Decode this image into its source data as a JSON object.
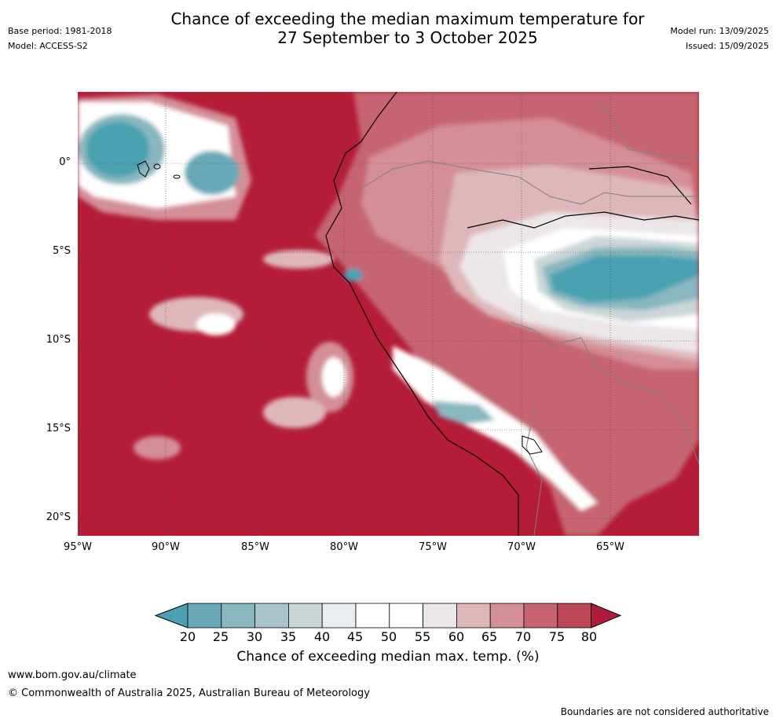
{
  "header": {
    "title_line1": "Chance of exceeding the median maximum temperature for",
    "title_line2": "27 September to 3 October 2025",
    "base_period": "Base period: 1981-2018",
    "model": "Model: ACCESS-S2",
    "model_run": "Model run: 13/09/2025",
    "issued": "Issued: 15/09/2025"
  },
  "map": {
    "lat_labels": [
      "0°",
      "5°S",
      "10°S",
      "15°S",
      "20°S"
    ],
    "lon_labels": [
      "95°W",
      "90°W",
      "85°W",
      "80°W",
      "75°W",
      "70°W",
      "65°W"
    ],
    "base_color": "#b41c38"
  },
  "colorbar": {
    "ticks": [
      "20",
      "25",
      "30",
      "35",
      "40",
      "45",
      "50",
      "55",
      "60",
      "65",
      "70",
      "75",
      "80"
    ],
    "colors": [
      "#4aa1b1",
      "#69a9b7",
      "#88b7c0",
      "#a8c6ca",
      "#cad6d8",
      "#e9eef0",
      "#ffffff",
      "#ffffff",
      "#ebe6e7",
      "#deb7bc",
      "#d48e97",
      "#c66571",
      "#bb4656",
      "#b01a3b"
    ],
    "label": "Chance of exceeding median max. temp. (%)"
  },
  "footer": {
    "url": "www.bom.gov.au/climate",
    "copyright": "© Commonwealth of Australia 2025, Australian Bureau of Meteorology",
    "disclaimer": "Boundaries are not considered authoritative"
  }
}
